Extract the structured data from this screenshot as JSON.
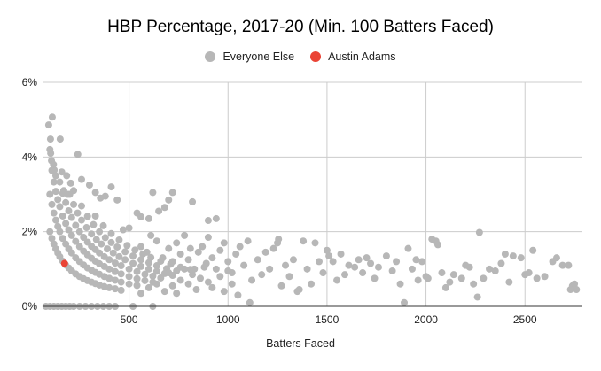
{
  "chart_data": {
    "type": "scatter",
    "title": "HBP Percentage, 2017-20 (Min. 100 Batters Faced)",
    "xlabel": "Batters Faced",
    "ylabel": "",
    "xlim": [
      63,
      2790
    ],
    "ylim": [
      0,
      6
    ],
    "grid": true,
    "legend_position": "top",
    "x_ticks": [
      500,
      1000,
      1500,
      2000,
      2500
    ],
    "x_tick_labels": [
      "500",
      "1000",
      "1500",
      "2000",
      "2500"
    ],
    "y_ticks": [
      0,
      2,
      4,
      6
    ],
    "y_tick_labels": [
      "0%",
      "2%",
      "4%",
      "6%"
    ],
    "series": [
      {
        "name": "Everyone Else",
        "color": "#b7b7b7",
        "points": [
          [
            94,
            4.86
          ],
          [
            112,
            5.07
          ],
          [
            103,
            4.48
          ],
          [
            152,
            4.48
          ],
          [
            241,
            4.07
          ],
          [
            100,
            4.2
          ],
          [
            104,
            4.1
          ],
          [
            108,
            3.9
          ],
          [
            118,
            3.8
          ],
          [
            122,
            3.65
          ],
          [
            130,
            3.5
          ],
          [
            160,
            3.6
          ],
          [
            185,
            3.5
          ],
          [
            205,
            3.3
          ],
          [
            260,
            3.4
          ],
          [
            170,
            3.1
          ],
          [
            190,
            3.0
          ],
          [
            220,
            3.1
          ],
          [
            300,
            3.25
          ],
          [
            330,
            3.05
          ],
          [
            355,
            2.9
          ],
          [
            410,
            3.2
          ],
          [
            380,
            2.95
          ],
          [
            440,
            2.85
          ],
          [
            540,
            2.5
          ],
          [
            560,
            2.4
          ],
          [
            600,
            2.35
          ],
          [
            620,
            3.05
          ],
          [
            700,
            2.85
          ],
          [
            720,
            3.05
          ],
          [
            820,
            2.8
          ],
          [
            900,
            2.3
          ],
          [
            940,
            2.35
          ],
          [
            650,
            2.55
          ],
          [
            680,
            2.65
          ],
          [
            500,
            2.1
          ],
          [
            470,
            2.05
          ],
          [
            100,
            2.0
          ],
          [
            110,
            1.82
          ],
          [
            120,
            1.67
          ],
          [
            130,
            1.54
          ],
          [
            140,
            1.43
          ],
          [
            150,
            1.33
          ],
          [
            165,
            1.21
          ],
          [
            180,
            1.11
          ],
          [
            195,
            1.03
          ],
          [
            210,
            0.95
          ],
          [
            230,
            0.87
          ],
          [
            250,
            0.8
          ],
          [
            270,
            0.74
          ],
          [
            290,
            0.69
          ],
          [
            310,
            0.65
          ],
          [
            330,
            0.61
          ],
          [
            350,
            0.57
          ],
          [
            375,
            0.53
          ],
          [
            400,
            0.5
          ],
          [
            430,
            0.47
          ],
          [
            460,
            0.43
          ],
          [
            100,
            3.0
          ],
          [
            110,
            2.73
          ],
          [
            120,
            2.5
          ],
          [
            130,
            2.31
          ],
          [
            140,
            2.14
          ],
          [
            150,
            2.0
          ],
          [
            165,
            1.82
          ],
          [
            180,
            1.67
          ],
          [
            195,
            1.54
          ],
          [
            210,
            1.43
          ],
          [
            230,
            1.3
          ],
          [
            250,
            1.2
          ],
          [
            270,
            1.11
          ],
          [
            290,
            1.03
          ],
          [
            310,
            0.97
          ],
          [
            330,
            0.91
          ],
          [
            350,
            0.86
          ],
          [
            375,
            0.8
          ],
          [
            400,
            0.75
          ],
          [
            430,
            0.7
          ],
          [
            460,
            0.65
          ],
          [
            500,
            0.6
          ],
          [
            540,
            0.56
          ],
          [
            110,
            3.64
          ],
          [
            120,
            3.33
          ],
          [
            130,
            3.08
          ],
          [
            140,
            2.86
          ],
          [
            150,
            2.67
          ],
          [
            165,
            2.42
          ],
          [
            180,
            2.22
          ],
          [
            195,
            2.05
          ],
          [
            210,
            1.9
          ],
          [
            230,
            1.74
          ],
          [
            250,
            1.6
          ],
          [
            270,
            1.48
          ],
          [
            290,
            1.38
          ],
          [
            310,
            1.29
          ],
          [
            330,
            1.21
          ],
          [
            350,
            1.14
          ],
          [
            375,
            1.07
          ],
          [
            400,
            1.0
          ],
          [
            430,
            0.93
          ],
          [
            460,
            0.87
          ],
          [
            500,
            0.8
          ],
          [
            540,
            0.74
          ],
          [
            580,
            0.69
          ],
          [
            620,
            0.65
          ],
          [
            150,
            3.33
          ],
          [
            165,
            3.03
          ],
          [
            180,
            2.78
          ],
          [
            195,
            2.56
          ],
          [
            210,
            2.38
          ],
          [
            230,
            2.17
          ],
          [
            250,
            2.0
          ],
          [
            270,
            1.85
          ],
          [
            290,
            1.72
          ],
          [
            310,
            1.61
          ],
          [
            330,
            1.52
          ],
          [
            350,
            1.43
          ],
          [
            375,
            1.33
          ],
          [
            400,
            1.25
          ],
          [
            430,
            1.16
          ],
          [
            460,
            1.09
          ],
          [
            500,
            1.0
          ],
          [
            540,
            0.93
          ],
          [
            580,
            0.86
          ],
          [
            620,
            0.81
          ],
          [
            660,
            0.76
          ],
          [
            200,
            3.0
          ],
          [
            220,
            2.73
          ],
          [
            240,
            2.5
          ],
          [
            260,
            2.31
          ],
          [
            285,
            2.11
          ],
          [
            310,
            1.94
          ],
          [
            335,
            1.79
          ],
          [
            360,
            1.67
          ],
          [
            390,
            1.54
          ],
          [
            420,
            1.43
          ],
          [
            450,
            1.33
          ],
          [
            480,
            1.25
          ],
          [
            520,
            1.15
          ],
          [
            560,
            1.07
          ],
          [
            600,
            1.0
          ],
          [
            640,
            0.94
          ],
          [
            680,
            0.88
          ],
          [
            720,
            0.83
          ],
          [
            260,
            2.69
          ],
          [
            290,
            2.41
          ],
          [
            320,
            2.19
          ],
          [
            350,
            2.0
          ],
          [
            380,
            1.84
          ],
          [
            410,
            1.71
          ],
          [
            440,
            1.59
          ],
          [
            480,
            1.46
          ],
          [
            520,
            1.35
          ],
          [
            560,
            1.25
          ],
          [
            600,
            1.17
          ],
          [
            640,
            1.09
          ],
          [
            690,
            1.01
          ],
          [
            740,
            0.95
          ],
          [
            330,
            2.42
          ],
          [
            370,
            2.16
          ],
          [
            410,
            1.95
          ],
          [
            450,
            1.78
          ],
          [
            490,
            1.63
          ],
          [
            530,
            1.51
          ],
          [
            570,
            1.4
          ],
          [
            610,
            1.31
          ],
          [
            660,
            1.21
          ],
          [
            710,
            1.13
          ],
          [
            760,
            1.05
          ],
          [
            810,
            0.99
          ],
          [
            80,
            0.0
          ],
          [
            100,
            0.0
          ],
          [
            120,
            0.0
          ],
          [
            140,
            0.0
          ],
          [
            160,
            0.0
          ],
          [
            180,
            0.0
          ],
          [
            200,
            0.0
          ],
          [
            220,
            0.0
          ],
          [
            250,
            0.0
          ],
          [
            280,
            0.0
          ],
          [
            310,
            0.0
          ],
          [
            340,
            0.0
          ],
          [
            370,
            0.0
          ],
          [
            400,
            0.0
          ],
          [
            430,
            0.0
          ],
          [
            520,
            0.0
          ],
          [
            620,
            0.0
          ],
          [
            560,
            1.6
          ],
          [
            590,
            1.45
          ],
          [
            610,
            1.9
          ],
          [
            640,
            1.75
          ],
          [
            670,
            1.3
          ],
          [
            700,
            1.55
          ],
          [
            720,
            1.2
          ],
          [
            740,
            1.7
          ],
          [
            760,
            1.4
          ],
          [
            780,
            1.9
          ],
          [
            800,
            1.25
          ],
          [
            810,
            1.55
          ],
          [
            830,
            1.0
          ],
          [
            850,
            1.45
          ],
          [
            870,
            1.6
          ],
          [
            890,
            1.15
          ],
          [
            900,
            1.85
          ],
          [
            920,
            1.3
          ],
          [
            940,
            1.0
          ],
          [
            960,
            1.5
          ],
          [
            980,
            1.7
          ],
          [
            1000,
            1.2
          ],
          [
            1020,
            0.9
          ],
          [
            1040,
            1.4
          ],
          [
            1060,
            1.6
          ],
          [
            1080,
            1.1
          ],
          [
            1100,
            1.75
          ],
          [
            1120,
            0.7
          ],
          [
            560,
            0.35
          ],
          [
            600,
            0.5
          ],
          [
            640,
            0.6
          ],
          [
            680,
            0.4
          ],
          [
            700,
            0.9
          ],
          [
            720,
            0.55
          ],
          [
            740,
            0.35
          ],
          [
            760,
            0.7
          ],
          [
            780,
            1.0
          ],
          [
            800,
            0.6
          ],
          [
            820,
            0.85
          ],
          [
            840,
            0.45
          ],
          [
            860,
            0.75
          ],
          [
            880,
            1.05
          ],
          [
            900,
            0.65
          ],
          [
            920,
            0.5
          ],
          [
            960,
            0.8
          ],
          [
            980,
            0.4
          ],
          [
            1000,
            0.95
          ],
          [
            1020,
            0.6
          ],
          [
            1050,
            0.3
          ],
          [
            1110,
            0.1
          ],
          [
            1150,
            1.25
          ],
          [
            1170,
            0.85
          ],
          [
            1190,
            1.45
          ],
          [
            1210,
            1.0
          ],
          [
            1230,
            1.55
          ],
          [
            1250,
            1.7
          ],
          [
            1255,
            1.8
          ],
          [
            1270,
            0.55
          ],
          [
            1290,
            1.1
          ],
          [
            1310,
            0.8
          ],
          [
            1330,
            1.25
          ],
          [
            1350,
            0.4
          ],
          [
            1360,
            0.45
          ],
          [
            1380,
            1.75
          ],
          [
            1400,
            1.0
          ],
          [
            1420,
            0.6
          ],
          [
            1440,
            1.7
          ],
          [
            1460,
            1.2
          ],
          [
            1480,
            0.9
          ],
          [
            1500,
            1.5
          ],
          [
            1510,
            1.35
          ],
          [
            1530,
            1.2
          ],
          [
            1550,
            0.7
          ],
          [
            1570,
            1.4
          ],
          [
            1590,
            0.85
          ],
          [
            1610,
            1.1
          ],
          [
            1640,
            1.05
          ],
          [
            1660,
            1.25
          ],
          [
            1680,
            0.9
          ],
          [
            1700,
            1.3
          ],
          [
            1720,
            1.15
          ],
          [
            1740,
            0.75
          ],
          [
            1760,
            1.05
          ],
          [
            1800,
            1.35
          ],
          [
            1830,
            0.95
          ],
          [
            1850,
            1.2
          ],
          [
            1870,
            0.6
          ],
          [
            1890,
            0.1
          ],
          [
            1910,
            1.55
          ],
          [
            1930,
            1.0
          ],
          [
            1950,
            1.25
          ],
          [
            1960,
            0.7
          ],
          [
            1980,
            1.2
          ],
          [
            2000,
            0.8
          ],
          [
            2010,
            0.75
          ],
          [
            2030,
            1.8
          ],
          [
            2050,
            1.75
          ],
          [
            2060,
            1.65
          ],
          [
            2080,
            0.9
          ],
          [
            2100,
            0.5
          ],
          [
            2120,
            0.65
          ],
          [
            2140,
            0.85
          ],
          [
            2180,
            0.75
          ],
          [
            2200,
            1.1
          ],
          [
            2220,
            1.05
          ],
          [
            2240,
            0.6
          ],
          [
            2260,
            0.25
          ],
          [
            2270,
            1.98
          ],
          [
            2290,
            0.75
          ],
          [
            2320,
            1.0
          ],
          [
            2350,
            0.95
          ],
          [
            2380,
            1.15
          ],
          [
            2400,
            1.4
          ],
          [
            2420,
            0.65
          ],
          [
            2440,
            1.35
          ],
          [
            2480,
            1.3
          ],
          [
            2500,
            0.85
          ],
          [
            2520,
            0.9
          ],
          [
            2540,
            1.5
          ],
          [
            2560,
            0.75
          ],
          [
            2600,
            0.8
          ],
          [
            2640,
            1.2
          ],
          [
            2660,
            1.3
          ],
          [
            2690,
            1.1
          ],
          [
            2720,
            1.1
          ],
          [
            2730,
            0.45
          ],
          [
            2740,
            0.55
          ],
          [
            2750,
            0.6
          ],
          [
            2760,
            0.45
          ]
        ]
      },
      {
        "name": "Austin Adams",
        "color": "#ea4335",
        "points": [
          [
            174,
            1.15
          ]
        ]
      }
    ]
  }
}
